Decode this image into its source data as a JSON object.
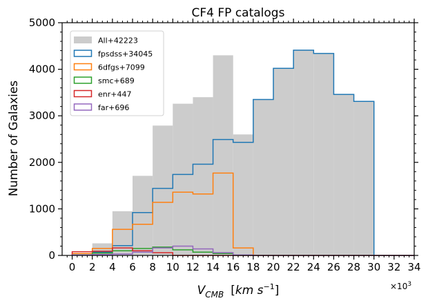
{
  "chart_data": {
    "type": "histogram",
    "title": "CF4 FP catalogs",
    "xlabel": "V_CMB  [km s^-1]",
    "xlabel_parts": {
      "v": "V",
      "sub": "CMB",
      "unit_open": "[",
      "unit_km": "km s",
      "unit_exp": "−1",
      "unit_close": "]"
    },
    "ylabel": "Number of Galaxies",
    "x_scale_note": "×10",
    "x_scale_exp": "3",
    "xlim": [
      -1000,
      34000
    ],
    "ylim": [
      0,
      5000
    ],
    "x_ticks": [
      0,
      2,
      4,
      6,
      8,
      10,
      12,
      14,
      16,
      18,
      20,
      22,
      24,
      26,
      28,
      30,
      32,
      34
    ],
    "y_ticks": [
      0,
      1000,
      2000,
      3000,
      4000,
      5000
    ],
    "x_tick_labels": [
      "0",
      "2",
      "4",
      "6",
      "8",
      "10",
      "12",
      "14",
      "16",
      "18",
      "20",
      "22",
      "24",
      "26",
      "28",
      "30",
      "32",
      "34"
    ],
    "y_tick_labels": [
      "0",
      "1000",
      "2000",
      "3000",
      "4000",
      "5000"
    ],
    "bin_edges": [
      0,
      2000,
      4000,
      6000,
      8000,
      10000,
      12000,
      14000,
      16000,
      18000,
      20000,
      22000,
      24000,
      26000,
      28000,
      30000,
      32000,
      34000
    ],
    "legend_position": "upper-left",
    "series": [
      {
        "name": "All+42223",
        "style": "filled",
        "color": "#cccccc",
        "values": [
          50,
          260,
          950,
          1710,
          2790,
          3260,
          3400,
          4300,
          2600,
          3350,
          4020,
          4410,
          4340,
          3460,
          3310,
          0,
          0
        ]
      },
      {
        "name": "fpsdss+34045",
        "style": "step",
        "color": "#1f77b4",
        "values": [
          10,
          70,
          210,
          920,
          1440,
          1740,
          1960,
          2490,
          2430,
          3350,
          4020,
          4410,
          4340,
          3460,
          3310,
          0,
          0
        ]
      },
      {
        "name": "6dfgs+7099",
        "style": "step",
        "color": "#ff7f0e",
        "values": [
          40,
          150,
          560,
          670,
          1140,
          1360,
          1320,
          1770,
          160,
          0,
          0,
          0,
          0,
          0,
          0,
          0,
          0
        ]
      },
      {
        "name": "smc+689",
        "style": "step",
        "color": "#2ca02c",
        "values": [
          10,
          50,
          100,
          150,
          180,
          120,
          70,
          40,
          0,
          0,
          0,
          0,
          0,
          0,
          0,
          0,
          0
        ]
      },
      {
        "name": "enr+447",
        "style": "step",
        "color": "#d62728",
        "values": [
          80,
          90,
          160,
          100,
          60,
          0,
          0,
          0,
          0,
          0,
          0,
          0,
          0,
          0,
          0,
          0,
          0
        ]
      },
      {
        "name": "far+696",
        "style": "step",
        "color": "#9467bd",
        "values": [
          10,
          20,
          30,
          70,
          160,
          200,
          140,
          60,
          10,
          0,
          0,
          0,
          0,
          0,
          0,
          0,
          0
        ]
      }
    ]
  }
}
